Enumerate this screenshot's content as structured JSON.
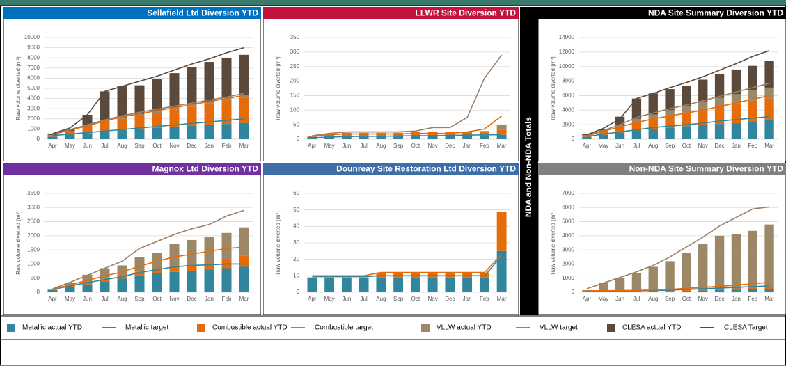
{
  "side_label": "NDA and Non-NDA Totals",
  "chart_data": [
    {
      "type": "bar",
      "title": "Sellafield Ltd Diversion YTD",
      "title_color": "#0070c0",
      "ylabel": "Raw volume diverted (m³)",
      "categories": [
        "Apr",
        "May",
        "Jun",
        "Jul",
        "Aug",
        "Sep",
        "Oct",
        "Nov",
        "Dec",
        "Jan",
        "Feb",
        "Mar"
      ],
      "ylim": [
        0,
        10000
      ],
      "yticks": [
        0,
        1000,
        2000,
        3000,
        4000,
        5000,
        6000,
        7000,
        8000,
        9000,
        10000
      ],
      "series": [
        {
          "name": "Metallic actual YTD",
          "color": "#31859c",
          "kind": "bar",
          "values": [
            250,
            450,
            600,
            750,
            900,
            1000,
            1100,
            1200,
            1300,
            1400,
            1500,
            1600
          ]
        },
        {
          "name": "Metallic target",
          "color": "#31859c",
          "kind": "line",
          "values": [
            350,
            500,
            650,
            800,
            950,
            1100,
            1250,
            1400,
            1550,
            1700,
            1850,
            2000
          ]
        },
        {
          "name": "Combustible actual YTD",
          "color": "#e46c0a",
          "kind": "bar",
          "values": [
            100,
            300,
            700,
            900,
            1100,
            1300,
            1500,
            1700,
            1900,
            2100,
            2300,
            2500
          ]
        },
        {
          "name": "Combustible target",
          "color": "#e46c0a",
          "kind": "line",
          "values": [
            450,
            900,
            1300,
            1800,
            2200,
            2500,
            2800,
            3100,
            3400,
            3700,
            4000,
            4300
          ]
        },
        {
          "name": "VLLW actual YTD",
          "color": "#9c8866",
          "kind": "bar",
          "values": [
            50,
            50,
            100,
            150,
            150,
            150,
            200,
            200,
            200,
            200,
            250,
            250
          ]
        },
        {
          "name": "VLLW target",
          "color": "#9c7e66",
          "kind": "line",
          "values": [
            500,
            950,
            1400,
            1900,
            2300,
            2650,
            2950,
            3250,
            3550,
            3850,
            4150,
            4500
          ]
        },
        {
          "name": "CLESA actual YTD",
          "color": "#5b4a3c",
          "kind": "bar",
          "values": [
            100,
            200,
            1000,
            2900,
            3050,
            2850,
            3100,
            3400,
            3700,
            3900,
            3950,
            3950
          ]
        },
        {
          "name": "CLESA Target",
          "color": "#5b4a3c",
          "kind": "line",
          "values": [
            550,
            1100,
            2400,
            4700,
            5200,
            5700,
            6200,
            6800,
            7400,
            7900,
            8500,
            9000
          ]
        }
      ]
    },
    {
      "type": "bar",
      "title": "LLWR Site Diversion YTD",
      "title_color": "#c0143c",
      "ylabel": "Raw volume diverted (m³)",
      "categories": [
        "Apr",
        "May",
        "Jun",
        "Jul",
        "Aug",
        "Sep",
        "Oct",
        "Nov",
        "Dec",
        "Jan",
        "Feb",
        "Mar"
      ],
      "ylim": [
        0,
        350
      ],
      "yticks": [
        0,
        50,
        100,
        150,
        200,
        250,
        300,
        350
      ],
      "series": [
        {
          "name": "Metallic actual YTD",
          "color": "#31859c",
          "kind": "bar",
          "values": [
            8,
            10,
            12,
            12,
            12,
            12,
            12,
            12,
            12,
            12,
            12,
            15
          ]
        },
        {
          "name": "Metallic target",
          "color": "#31859c",
          "kind": "line",
          "values": [
            5,
            7,
            9,
            10,
            10,
            11,
            12,
            12,
            13,
            14,
            15,
            15
          ]
        },
        {
          "name": "Combustible actual YTD",
          "color": "#e46c0a",
          "kind": "bar",
          "values": [
            4,
            8,
            10,
            10,
            10,
            10,
            12,
            12,
            14,
            14,
            16,
            18
          ]
        },
        {
          "name": "Combustible target",
          "color": "#e46c0a",
          "kind": "line",
          "values": [
            10,
            15,
            18,
            18,
            18,
            18,
            20,
            20,
            20,
            25,
            35,
            80
          ]
        },
        {
          "name": "VLLW actual YTD",
          "color": "#9c8866",
          "kind": "bar",
          "values": [
            0,
            0,
            0,
            0,
            0,
            0,
            0,
            0,
            0,
            0,
            0,
            15
          ]
        },
        {
          "name": "VLLW target",
          "color": "#9c7e66",
          "kind": "line",
          "values": [
            12,
            20,
            25,
            25,
            25,
            25,
            28,
            40,
            40,
            75,
            210,
            290
          ]
        }
      ]
    },
    {
      "type": "bar",
      "title": "NDA Site Summary Diversion YTD",
      "title_color": "#000000",
      "ylabel": "Raw volume diverted (m³)",
      "categories": [
        "Apr",
        "May",
        "Jun",
        "Jul",
        "Aug",
        "Sep",
        "Oct",
        "Nov",
        "Dec",
        "Jan",
        "Feb",
        "Mar"
      ],
      "ylim": [
        0,
        14000
      ],
      "yticks": [
        0,
        2000,
        4000,
        6000,
        8000,
        10000,
        12000,
        14000
      ],
      "series": [
        {
          "name": "Metallic actual YTD",
          "color": "#31859c",
          "kind": "bar",
          "values": [
            300,
            600,
            900,
            1200,
            1400,
            1600,
            1800,
            2000,
            2100,
            2200,
            2400,
            2600
          ]
        },
        {
          "name": "Metallic target",
          "color": "#31859c",
          "kind": "line",
          "values": [
            350,
            700,
            1000,
            1300,
            1600,
            1800,
            2000,
            2200,
            2500,
            2700,
            2900,
            3100
          ]
        },
        {
          "name": "Combustible actual YTD",
          "color": "#e46c0a",
          "kind": "bar",
          "values": [
            150,
            400,
            800,
            1100,
            1400,
            1700,
            1900,
            2200,
            2500,
            2700,
            2900,
            3000
          ]
        },
        {
          "name": "Combustible target",
          "color": "#e46c0a",
          "kind": "line",
          "values": [
            450,
            1100,
            1700,
            2300,
            2800,
            3200,
            3600,
            4000,
            4500,
            5000,
            5500,
            6000
          ]
        },
        {
          "name": "VLLW actual YTD",
          "color": "#9c8866",
          "kind": "bar",
          "values": [
            100,
            200,
            300,
            500,
            600,
            700,
            900,
            1000,
            1100,
            1300,
            1400,
            1500
          ]
        },
        {
          "name": "VLLW target",
          "color": "#9c7e66",
          "kind": "line",
          "values": [
            550,
            1200,
            2000,
            3000,
            3600,
            4200,
            4700,
            5300,
            5900,
            6500,
            7100,
            7700
          ]
        },
        {
          "name": "CLESA actual YTD",
          "color": "#5b4a3c",
          "kind": "bar",
          "values": [
            150,
            200,
            1100,
            2800,
            2900,
            2900,
            2700,
            3000,
            3300,
            3400,
            3400,
            3700
          ]
        },
        {
          "name": "CLESA Target",
          "color": "#5b4a3c",
          "kind": "line",
          "values": [
            600,
            1500,
            2800,
            5600,
            6300,
            7100,
            7800,
            8600,
            9500,
            10400,
            11400,
            12200
          ]
        }
      ]
    },
    {
      "type": "bar",
      "title": "Magnox Ltd Diversion YTD",
      "title_color": "#7030a0",
      "ylabel": "Raw volume diverted (m³)",
      "categories": [
        "Apr",
        "May",
        "Jun",
        "Jul",
        "Aug",
        "Sep",
        "Oct",
        "Nov",
        "Dec",
        "Jan",
        "Feb",
        "Mar"
      ],
      "ylim": [
        0,
        3500
      ],
      "yticks": [
        0,
        500,
        1000,
        1500,
        2000,
        2500,
        3000,
        3500
      ],
      "series": [
        {
          "name": "Metallic actual YTD",
          "color": "#31859c",
          "kind": "bar",
          "values": [
            80,
            180,
            280,
            380,
            480,
            600,
            680,
            720,
            760,
            800,
            850,
            900
          ]
        },
        {
          "name": "Metallic target",
          "color": "#31859c",
          "kind": "line",
          "values": [
            100,
            220,
            340,
            450,
            550,
            700,
            800,
            900,
            950,
            970,
            1000,
            1000
          ]
        },
        {
          "name": "Combustible actual YTD",
          "color": "#e46c0a",
          "kind": "bar",
          "values": [
            10,
            40,
            60,
            80,
            100,
            120,
            150,
            180,
            200,
            250,
            300,
            400
          ]
        },
        {
          "name": "Combustible target",
          "color": "#e46c0a",
          "kind": "line",
          "values": [
            110,
            260,
            420,
            580,
            720,
            920,
            1100,
            1250,
            1350,
            1450,
            1550,
            1600
          ]
        },
        {
          "name": "VLLW actual YTD",
          "color": "#9c8866",
          "kind": "bar",
          "values": [
            10,
            100,
            280,
            390,
            370,
            530,
            570,
            800,
            890,
            900,
            950,
            1000
          ]
        },
        {
          "name": "VLLW target",
          "color": "#9c7e66",
          "kind": "line",
          "values": [
            120,
            350,
            600,
            850,
            1100,
            1550,
            1800,
            2050,
            2250,
            2400,
            2700,
            2900
          ]
        }
      ]
    },
    {
      "type": "bar",
      "title": "Dounreay Site Restoration Ltd Diversion YTD",
      "title_color": "#3d6ea8",
      "ylabel": "Raw volume diverted (m³)",
      "categories": [
        "Apr",
        "May",
        "Jun",
        "Jul",
        "Aug",
        "Sep",
        "Oct",
        "Nov",
        "Dec",
        "Jan",
        "Feb",
        "Mar"
      ],
      "ylim": [
        0,
        60
      ],
      "yticks": [
        0,
        10,
        20,
        30,
        40,
        50,
        60
      ],
      "series": [
        {
          "name": "Metallic actual YTD",
          "color": "#31859c",
          "kind": "bar",
          "values": [
            9,
            9,
            9,
            9,
            9,
            9,
            9,
            9,
            9,
            9,
            9,
            25
          ]
        },
        {
          "name": "Metallic target",
          "color": "#31859c",
          "kind": "line",
          "values": [
            9.5,
            9.5,
            9.5,
            9.5,
            10,
            10,
            10,
            10,
            10,
            10,
            10,
            22
          ]
        },
        {
          "name": "Combustible actual YTD",
          "color": "#e46c0a",
          "kind": "bar",
          "values": [
            0,
            0,
            0,
            0,
            3,
            3,
            3,
            3,
            3,
            3,
            3,
            24
          ]
        },
        {
          "name": "Combustible target",
          "color": "#e46c0a",
          "kind": "line",
          "values": [
            10,
            10,
            10,
            10,
            12,
            12,
            12,
            12,
            12,
            12,
            12,
            23
          ]
        }
      ]
    },
    {
      "type": "bar",
      "title": "Non-NDA Site Summary Diversion YTD",
      "title_color": "#808080",
      "ylabel": "Raw volume diverted (m³)",
      "categories": [
        "Apr",
        "May",
        "Jun",
        "Jul",
        "Aug",
        "Sep",
        "Oct",
        "Nov",
        "Dec",
        "Jan",
        "Feb",
        "Mar"
      ],
      "ylim": [
        0,
        7000
      ],
      "yticks": [
        0,
        1000,
        2000,
        3000,
        4000,
        5000,
        6000,
        7000
      ],
      "series": [
        {
          "name": "Metallic actual YTD",
          "color": "#31859c",
          "kind": "bar",
          "values": [
            30,
            40,
            50,
            60,
            70,
            90,
            110,
            130,
            150,
            170,
            200,
            230
          ]
        },
        {
          "name": "Metallic target",
          "color": "#31859c",
          "kind": "line",
          "values": [
            50,
            60,
            80,
            100,
            120,
            150,
            200,
            250,
            300,
            350,
            400,
            450
          ]
        },
        {
          "name": "Combustible actual YTD",
          "color": "#e46c0a",
          "kind": "bar",
          "values": [
            20,
            30,
            40,
            40,
            50,
            60,
            70,
            80,
            90,
            100,
            120,
            150
          ]
        },
        {
          "name": "Combustible target",
          "color": "#e46c0a",
          "kind": "line",
          "values": [
            100,
            110,
            120,
            140,
            160,
            200,
            280,
            350,
            420,
            500,
            600,
            700
          ]
        },
        {
          "name": "VLLW actual YTD",
          "color": "#9c8866",
          "kind": "bar",
          "values": [
            100,
            580,
            910,
            1250,
            1680,
            2050,
            2620,
            3190,
            3760,
            3830,
            4030,
            4420
          ]
        },
        {
          "name": "VLLW target",
          "color": "#9c7e66",
          "kind": "line",
          "values": [
            250,
            650,
            1050,
            1450,
            1900,
            2500,
            3200,
            3900,
            4700,
            5300,
            5900,
            6050
          ]
        }
      ]
    }
  ]
}
